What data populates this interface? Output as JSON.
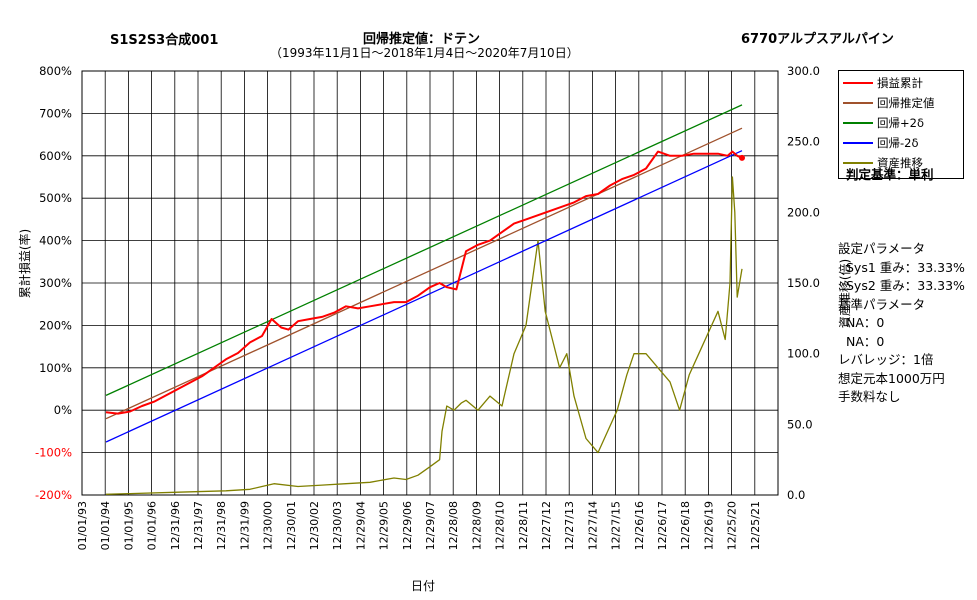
{
  "header": {
    "left": "S1S2S3合成001",
    "center": "回帰推定値：ドテン",
    "subtitle": "（1993年11月1日～2018年1月4日～2020年7月10日）",
    "right": "6770アルプスアルパイン"
  },
  "axes": {
    "ylabel_left": "累計損益(率)",
    "ylabel_right": "資産推移(倍)",
    "xlabel": "日付"
  },
  "legend": [
    {
      "label": "損益累計",
      "color": "#ff0000"
    },
    {
      "label": "回帰推定値",
      "color": "#a0522d"
    },
    {
      "label": "回帰+2δ",
      "color": "#008000"
    },
    {
      "label": "回帰-2δ",
      "color": "#0000ff"
    },
    {
      "label": "資産推移",
      "color": "#808000"
    }
  ],
  "verdict": "判定基準：単利",
  "params": [
    "設定パラメータ",
    "Sys1 重み：33.33%",
    "Sys2 重み：33.33%",
    "基準パラメータ",
    "NA：0",
    "NA：0",
    "レバレッジ：1倍",
    "想定元本1000万円",
    "手数料なし"
  ],
  "colors": {
    "axis_left_red": "#ff0000",
    "grid": "#000000"
  },
  "chart_data": {
    "type": "line",
    "x_ticks": [
      "01/01/93",
      "01/01/94",
      "01/01/95",
      "01/01/96",
      "12/31/96",
      "12/31/97",
      "12/31/98",
      "12/31/99",
      "12/30/00",
      "12/30/01",
      "12/30/02",
      "12/30/03",
      "12/29/04",
      "12/29/05",
      "12/29/06",
      "12/29/07",
      "12/28/08",
      "12/28/09",
      "12/28/10",
      "12/28/11",
      "12/27/12",
      "12/27/13",
      "12/27/14",
      "12/27/15",
      "12/26/16",
      "12/26/17",
      "12/26/18",
      "12/26/19",
      "12/25/20",
      "12/25/21"
    ],
    "y_left_ticks": [
      "800%",
      "700%",
      "600%",
      "500%",
      "400%",
      "300%",
      "200%",
      "100%",
      "0%",
      "-100%",
      "-200%"
    ],
    "y_left_range": [
      -200,
      800
    ],
    "y_right_ticks": [
      "300.0",
      "250.0",
      "200.0",
      "150.0",
      "100.0",
      "50.0",
      "0.0"
    ],
    "y_right_range": [
      0,
      300
    ],
    "series": [
      {
        "name": "損益累計",
        "axis": "left",
        "x": [
          1994.0,
          1994.5,
          1995.0,
          1995.5,
          1996.0,
          1996.5,
          1997.0,
          1997.5,
          1998.0,
          1998.5,
          1999.0,
          1999.5,
          2000.0,
          2000.5,
          2000.9,
          2001.3,
          2001.6,
          2002.0,
          2002.5,
          2003.0,
          2003.5,
          2004.0,
          2004.5,
          2005.0,
          2005.5,
          2006.0,
          2006.5,
          2007.0,
          2007.5,
          2007.9,
          2008.2,
          2008.6,
          2009.0,
          2009.5,
          2010.0,
          2010.5,
          2011.0,
          2011.5,
          2012.0,
          2012.5,
          2013.0,
          2013.5,
          2014.0,
          2014.5,
          2015.0,
          2015.5,
          2016.0,
          2016.5,
          2017.0,
          2017.5,
          2018.0,
          2018.5,
          2019.0,
          2019.5,
          2019.9,
          2020.1,
          2020.3,
          2020.5
        ],
        "values": [
          -5,
          -8,
          -3,
          10,
          20,
          35,
          50,
          65,
          80,
          100,
          120,
          135,
          160,
          175,
          215,
          195,
          190,
          210,
          215,
          220,
          230,
          245,
          240,
          245,
          250,
          255,
          255,
          270,
          290,
          300,
          290,
          285,
          375,
          390,
          400,
          420,
          440,
          450,
          460,
          470,
          480,
          490,
          505,
          510,
          530,
          545,
          555,
          570,
          610,
          600,
          600,
          605,
          605,
          605,
          600,
          610,
          600,
          595
        ]
      },
      {
        "name": "回帰推定値",
        "axis": "left",
        "x": [
          1994.0,
          2020.5
        ],
        "values": [
          -20,
          665
        ]
      },
      {
        "name": "回帰+2δ",
        "axis": "left",
        "x": [
          1994.0,
          2020.5
        ],
        "values": [
          35,
          720
        ]
      },
      {
        "name": "回帰-2δ",
        "axis": "left",
        "x": [
          1994.0,
          2020.5
        ],
        "values": [
          -75,
          612
        ]
      },
      {
        "name": "資産推移",
        "axis": "right",
        "x": [
          1994.0,
          1995.0,
          1997.0,
          1999.0,
          2000.0,
          2000.5,
          2001.0,
          2002.0,
          2003.0,
          2004.0,
          2005.0,
          2006.0,
          2006.5,
          2007.0,
          2007.5,
          2007.9,
          2008.0,
          2008.2,
          2008.5,
          2008.8,
          2009.0,
          2009.5,
          2010.0,
          2010.5,
          2011.0,
          2011.5,
          2012.0,
          2012.3,
          2012.6,
          2012.9,
          2013.2,
          2013.5,
          2014.0,
          2014.5,
          2014.9,
          2015.3,
          2015.7,
          2016.0,
          2016.5,
          2017.0,
          2017.5,
          2017.9,
          2018.3,
          2018.7,
          2019.1,
          2019.5,
          2019.8,
          2020.0,
          2020.1,
          2020.2,
          2020.3,
          2020.5
        ],
        "values": [
          0.5,
          1,
          2,
          3,
          4,
          6,
          8,
          6,
          7,
          8,
          9,
          12,
          11,
          14,
          20,
          25,
          45,
          63,
          60,
          65,
          67,
          60,
          70,
          63,
          100,
          120,
          180,
          130,
          110,
          90,
          100,
          70,
          40,
          30,
          45,
          60,
          85,
          100,
          100,
          90,
          80,
          60,
          85,
          100,
          115,
          130,
          110,
          150,
          225,
          200,
          140,
          160
        ]
      }
    ],
    "grid": true,
    "legend_position": "top-right outside plot"
  }
}
